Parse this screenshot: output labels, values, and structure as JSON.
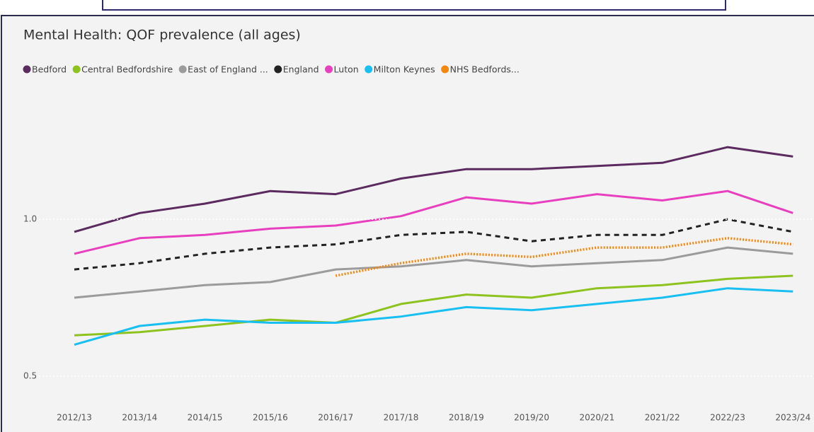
{
  "chart_data": {
    "type": "line",
    "title": "Mental Health: QOF prevalence (all ages)",
    "categories": [
      "2012/13",
      "2013/14",
      "2014/15",
      "2015/16",
      "2016/17",
      "2017/18",
      "2018/19",
      "2019/20",
      "2020/21",
      "2021/22",
      "2022/23",
      "2023/24"
    ],
    "series": [
      {
        "name": "Bedford",
        "color": "#5b2a5e",
        "style": "solid",
        "values": [
          0.96,
          1.02,
          1.05,
          1.09,
          1.08,
          1.13,
          1.16,
          1.16,
          1.17,
          1.18,
          1.23,
          1.2
        ]
      },
      {
        "name": "Central Bedfordshire",
        "color": "#8dc21f",
        "style": "solid",
        "values": [
          0.63,
          0.64,
          0.66,
          0.68,
          0.67,
          0.73,
          0.76,
          0.75,
          0.78,
          0.79,
          0.81,
          0.82
        ]
      },
      {
        "name": "East of England ...",
        "color": "#9b9b9b",
        "style": "solid",
        "values": [
          0.75,
          0.77,
          0.79,
          0.8,
          0.84,
          0.85,
          0.87,
          0.85,
          0.86,
          0.87,
          0.91,
          0.89
        ]
      },
      {
        "name": "England",
        "color": "#222222",
        "style": "dashed",
        "values": [
          0.84,
          0.86,
          0.89,
          0.91,
          0.92,
          0.95,
          0.96,
          0.93,
          0.95,
          0.95,
          1.0,
          0.96
        ]
      },
      {
        "name": "Luton",
        "color": "#e83fbf",
        "style": "solid",
        "values": [
          0.89,
          0.94,
          0.95,
          0.97,
          0.98,
          1.01,
          1.07,
          1.05,
          1.08,
          1.06,
          1.09,
          1.02
        ]
      },
      {
        "name": "Milton Keynes",
        "color": "#18bff0",
        "style": "solid",
        "values": [
          0.6,
          0.66,
          0.68,
          0.67,
          0.67,
          0.69,
          0.72,
          0.71,
          0.73,
          0.75,
          0.78,
          0.77
        ]
      },
      {
        "name": "NHS Bedfords...",
        "color": "#f5870f",
        "style": "dotted",
        "values": [
          null,
          null,
          null,
          null,
          0.82,
          0.86,
          0.89,
          0.88,
          0.91,
          0.91,
          0.94,
          0.92
        ]
      }
    ],
    "ylim": [
      0.43,
      1.37
    ],
    "yticks": [
      {
        "value": 1,
        "label": "1.0"
      },
      0.5
    ],
    "grid": true
  }
}
